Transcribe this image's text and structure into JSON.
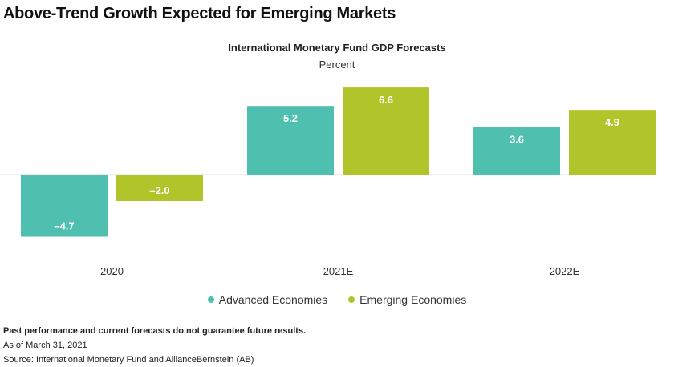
{
  "header": {
    "title": "Above-Trend Growth Expected for Emerging Markets"
  },
  "chart_data": {
    "type": "bar",
    "title": "International Monetary Fund GDP Forecasts",
    "subtitle": "Percent",
    "categories": [
      "2020",
      "2021E",
      "2022E"
    ],
    "series": [
      {
        "name": "Advanced Economies",
        "color": "#4fbfb0",
        "values": [
          -4.7,
          5.2,
          3.6
        ],
        "labels": [
          "–4.7",
          "5.2",
          "3.6"
        ]
      },
      {
        "name": "Emerging Economies",
        "color": "#b1c42a",
        "values": [
          -2.0,
          6.6,
          4.9
        ],
        "labels": [
          "–2.0",
          "6.6",
          "4.9"
        ]
      }
    ],
    "ylim": [
      -6,
      8
    ],
    "grid": false,
    "legend_position": "bottom"
  },
  "footer": {
    "disclaimer": "Past performance and current forecasts do not guarantee future results.",
    "as_of": "As of March 31, 2021",
    "source": "Source: International Monetary Fund and AllianceBernstein (AB)"
  }
}
